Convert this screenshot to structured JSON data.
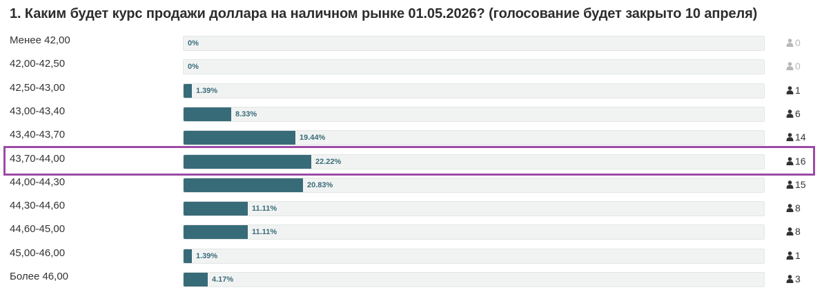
{
  "poll": {
    "title": "1. Каким будет курс продажи доллара на наличном рынке 01.05.2026? (голосование будет закрыто 10 апреля)"
  },
  "colors": {
    "bar": "#386b78",
    "track": "#f1f3f3",
    "highlight": "#9b4aa6",
    "zero_votes": "#b8b8b8"
  },
  "options": [
    {
      "label": "Менее 42,00",
      "percent": 0,
      "percent_label": "0%",
      "votes": "0"
    },
    {
      "label": "42,00-42,50",
      "percent": 0,
      "percent_label": "0%",
      "votes": "0"
    },
    {
      "label": "42,50-43,00",
      "percent": 1.39,
      "percent_label": "1.39%",
      "votes": "1"
    },
    {
      "label": "43,00-43,40",
      "percent": 8.33,
      "percent_label": "8.33%",
      "votes": "6"
    },
    {
      "label": "43,40-43,70",
      "percent": 19.44,
      "percent_label": "19.44%",
      "votes": "14"
    },
    {
      "label": "43,70-44,00",
      "percent": 22.22,
      "percent_label": "22.22%",
      "votes": "16",
      "highlighted": true
    },
    {
      "label": "44,00-44,30",
      "percent": 20.83,
      "percent_label": "20.83%",
      "votes": "15"
    },
    {
      "label": "44,30-44,60",
      "percent": 11.11,
      "percent_label": "11.11%",
      "votes": "8"
    },
    {
      "label": "44,60-45,00",
      "percent": 11.11,
      "percent_label": "11.11%",
      "votes": "8"
    },
    {
      "label": "45,00-46,00",
      "percent": 1.39,
      "percent_label": "1.39%",
      "votes": "1"
    },
    {
      "label": "Более 46,00",
      "percent": 4.17,
      "percent_label": "4.17%",
      "votes": "3"
    }
  ],
  "icons": {
    "vote_count": "person-icon"
  }
}
